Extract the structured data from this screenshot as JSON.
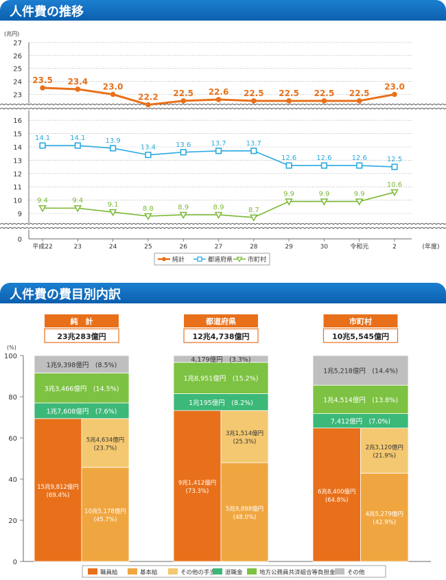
{
  "sections": {
    "trend_title": "人件費の推移",
    "breakdown_title": "人件費の費目別内訳"
  },
  "chart_data": [
    {
      "type": "line",
      "ylabel": "(兆円)",
      "xlabel": "(年度)",
      "categories": [
        "平成22",
        "23",
        "24",
        "25",
        "26",
        "27",
        "28",
        "29",
        "30",
        "令和元",
        "2"
      ],
      "yticks_upper": [
        23,
        24,
        25,
        26,
        27
      ],
      "yticks_lower": [
        9,
        10,
        11,
        12,
        13,
        14,
        15,
        16
      ],
      "yticks_zero": [
        0
      ],
      "axis_break": true,
      "grid": true,
      "legend_position": "bottom",
      "series": [
        {
          "name": "純計",
          "color": "#e8701a",
          "marker": "circle",
          "values": [
            23.5,
            23.4,
            23.0,
            22.2,
            22.5,
            22.6,
            22.5,
            22.5,
            22.5,
            22.5,
            23.0
          ],
          "labels": [
            "23.5",
            "23.4",
            "23.0",
            "22.2",
            "22.5",
            "22.6",
            "22.5",
            "22.5",
            "22.5",
            "22.5",
            "23.0"
          ]
        },
        {
          "name": "都道府県",
          "color": "#29a9e0",
          "marker": "square",
          "values": [
            14.1,
            14.1,
            13.9,
            13.4,
            13.6,
            13.7,
            13.7,
            12.6,
            12.6,
            12.6,
            12.5
          ],
          "labels": [
            "14.1",
            "14.1",
            "13.9",
            "13.4",
            "13.6",
            "13.7",
            "13.7",
            "12.6",
            "12.6",
            "12.6",
            "12.5"
          ]
        },
        {
          "name": "市町村",
          "color": "#7ab833",
          "marker": "triangle",
          "values": [
            9.4,
            9.4,
            9.1,
            8.8,
            8.9,
            8.9,
            8.7,
            9.9,
            9.9,
            9.9,
            10.6
          ],
          "labels": [
            "9.4",
            "9.4",
            "9.1",
            "8.8",
            "8.9",
            "8.9",
            "8.7",
            "9.9",
            "9.9",
            "9.9",
            "10.6"
          ]
        }
      ]
    },
    {
      "type": "bar",
      "ylabel": "(%)",
      "ylim": [
        0,
        100
      ],
      "yticks": [
        0,
        20,
        40,
        60,
        80,
        100
      ],
      "legend_position": "bottom",
      "categories": [
        {
          "name": "純　計",
          "total": "23兆283億円"
        },
        {
          "name": "都道府県",
          "total": "12兆4,738億円"
        },
        {
          "name": "市町村",
          "total": "10兆5,545億円"
        }
      ],
      "legend": [
        {
          "name": "職員給",
          "color": "#e8701a"
        },
        {
          "name": "基本給",
          "color": "#f0a640"
        },
        {
          "name": "その他の手当",
          "color": "#f4c870"
        },
        {
          "name": "退職金",
          "color": "#3cb878"
        },
        {
          "name": "地方公務員共済組合等負担金",
          "color": "#7dc242"
        },
        {
          "name": "その他",
          "color": "#bfbfbf"
        }
      ],
      "bars": [
        {
          "shokuin": {
            "value": 69.4,
            "label_line1": "15兆9,812億円",
            "label_line2": "(69.4%)"
          },
          "kihon": {
            "value": 45.7,
            "label_line1": "10兆5,178億円",
            "label_line2": "(45.7%)"
          },
          "teate": {
            "value": 23.7,
            "label_line1": "5兆4,634億円",
            "label_line2": "(23.7%)"
          },
          "upper": [
            {
              "legend": "退職金",
              "value": 7.6,
              "label": "1兆7,608億円　(7.6%)"
            },
            {
              "legend": "地方公務員共済組合等負担金",
              "value": 14.5,
              "label": "3兆3,466億円　(14.5%)"
            },
            {
              "legend": "その他",
              "value": 8.5,
              "label": "1兆9,398億円　(8.5%)"
            }
          ]
        },
        {
          "shokuin": {
            "value": 73.3,
            "label_line1": "9兆1,412億円",
            "label_line2": "(73.3%)"
          },
          "kihon": {
            "value": 48.0,
            "label_line1": "5兆9,898億円",
            "label_line2": "(48.0%)"
          },
          "teate": {
            "value": 25.3,
            "label_line1": "3兆1,514億円",
            "label_line2": "(25.3%)"
          },
          "upper": [
            {
              "legend": "退職金",
              "value": 8.2,
              "label": "1兆195億円　(8.2%)"
            },
            {
              "legend": "地方公務員共済組合等負担金",
              "value": 15.2,
              "label": "1兆8,951億円　(15.2%)"
            },
            {
              "legend": "その他",
              "value": 3.3,
              "label": "4,179億円　(3.3%)"
            }
          ]
        },
        {
          "shokuin": {
            "value": 64.8,
            "label_line1": "6兆8,400億円",
            "label_line2": "(64.8%)"
          },
          "kihon": {
            "value": 42.9,
            "label_line1": "4兆5,279億円",
            "label_line2": "(42.9%)"
          },
          "teate": {
            "value": 21.9,
            "label_line1": "2兆3,120億円",
            "label_line2": "(21.9%)"
          },
          "upper": [
            {
              "legend": "退職金",
              "value": 7.0,
              "label": "7,412億円　(7.0%)"
            },
            {
              "legend": "地方公務員共済組合等負担金",
              "value": 13.8,
              "label": "1兆4,514億円　(13.8%)"
            },
            {
              "legend": "その他",
              "value": 14.4,
              "label": "1兆5,218億円　(14.4%)"
            }
          ]
        }
      ]
    }
  ]
}
